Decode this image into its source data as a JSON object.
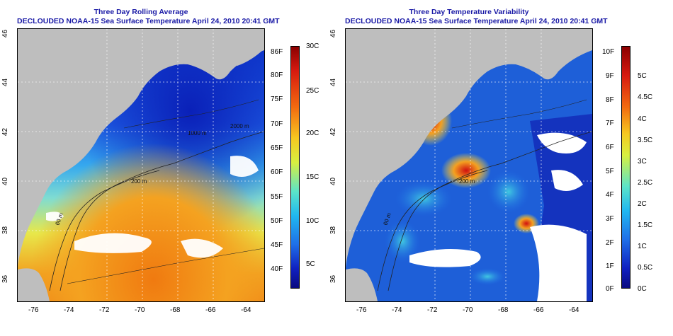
{
  "left_panel": {
    "title_line1": "Three Day Rolling Average",
    "title_line2": "DECLOUDED NOAA-15 Sea Surface Temperature April 24, 2010 20:41 GMT",
    "lat_ticks": [
      "46",
      "44",
      "42",
      "40",
      "38",
      "36"
    ],
    "lon_ticks": [
      "-76",
      "-74",
      "-72",
      "-70",
      "-68",
      "-66",
      "-64"
    ],
    "contour_labels": [
      "200 m",
      "60 m",
      "2000 m",
      "1000 m"
    ],
    "colorbar_f": [
      "86F",
      "80F",
      "75F",
      "70F",
      "65F",
      "60F",
      "55F",
      "50F",
      "45F",
      "40F"
    ],
    "colorbar_c": [
      "30C",
      "25C",
      "20C",
      "15C",
      "10C",
      "5C"
    ]
  },
  "right_panel": {
    "title_line1": "Three Day Temperature Variability",
    "title_line2": "DECLOUDED NOAA-15 Sea Surface Temperature April 24, 2010 20:41 GMT",
    "lat_ticks": [
      "46",
      "44",
      "42",
      "40",
      "38",
      "36"
    ],
    "lon_ticks": [
      "-76",
      "-74",
      "-72",
      "-70",
      "-68",
      "-66",
      "-64"
    ],
    "contour_labels": [
      "200 m",
      "60 m"
    ],
    "colorbar_f": [
      "10F",
      "9F",
      "8F",
      "7F",
      "6F",
      "5F",
      "4F",
      "3F",
      "2F",
      "1F",
      "0F"
    ],
    "colorbar_c": [
      "5C",
      "4.5C",
      "4C",
      "3.5C",
      "3C",
      "2.5C",
      "2C",
      "1.5C",
      "1C",
      "0.5C",
      "0C"
    ]
  },
  "colors": {
    "land": "#bebebe",
    "title": "#1a1aa6"
  }
}
